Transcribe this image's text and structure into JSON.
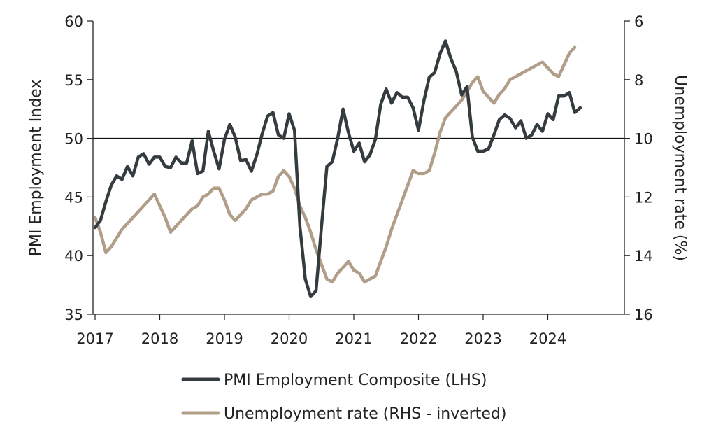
{
  "chart_data": {
    "type": "line",
    "title": "",
    "x_ticks": [
      "2017",
      "2018",
      "2019",
      "2020",
      "2021",
      "2022",
      "2023",
      "2024"
    ],
    "left_axis": {
      "label": "PMI Employment Index",
      "ylim": [
        35,
        60
      ],
      "ticks": [
        "60",
        "55",
        "50",
        "45",
        "40",
        "35"
      ],
      "reference_line": 50
    },
    "right_axis": {
      "label": "Unemployment rate (%)",
      "ylim": [
        6,
        16
      ],
      "inverted": true,
      "ticks": [
        "6",
        "8",
        "10",
        "12",
        "14",
        "16"
      ]
    },
    "legend_position": "bottom",
    "grid": false,
    "series": [
      {
        "name": "PMI Employment Composite (LHS)",
        "axis": "left",
        "color": "#343c40",
        "points": [
          [
            "2017-01",
            42.4
          ],
          [
            "2017-02",
            43.0
          ],
          [
            "2017-03",
            44.6
          ],
          [
            "2017-04",
            46.0
          ],
          [
            "2017-05",
            46.8
          ],
          [
            "2017-06",
            46.5
          ],
          [
            "2017-07",
            47.6
          ],
          [
            "2017-08",
            46.8
          ],
          [
            "2017-09",
            48.4
          ],
          [
            "2017-10",
            48.7
          ],
          [
            "2017-11",
            47.8
          ],
          [
            "2017-12",
            48.4
          ],
          [
            "2018-01",
            48.4
          ],
          [
            "2018-02",
            47.6
          ],
          [
            "2018-03",
            47.5
          ],
          [
            "2018-04",
            48.4
          ],
          [
            "2018-05",
            47.9
          ],
          [
            "2018-06",
            47.9
          ],
          [
            "2018-07",
            49.8
          ],
          [
            "2018-08",
            47.0
          ],
          [
            "2018-09",
            47.2
          ],
          [
            "2018-10",
            50.6
          ],
          [
            "2018-11",
            48.9
          ],
          [
            "2018-12",
            47.4
          ],
          [
            "2019-01",
            49.9
          ],
          [
            "2019-02",
            51.2
          ],
          [
            "2019-03",
            50.1
          ],
          [
            "2019-04",
            48.1
          ],
          [
            "2019-05",
            48.2
          ],
          [
            "2019-06",
            47.2
          ],
          [
            "2019-07",
            48.6
          ],
          [
            "2019-08",
            50.4
          ],
          [
            "2019-09",
            51.9
          ],
          [
            "2019-10",
            52.2
          ],
          [
            "2019-11",
            50.3
          ],
          [
            "2019-12",
            50.0
          ],
          [
            "2020-01",
            52.1
          ],
          [
            "2020-02",
            50.7
          ],
          [
            "2020-03",
            42.5
          ],
          [
            "2020-04",
            38.0
          ],
          [
            "2020-05",
            36.5
          ],
          [
            "2020-06",
            37.0
          ],
          [
            "2020-07",
            42.5
          ],
          [
            "2020-08",
            47.6
          ],
          [
            "2020-09",
            48.0
          ],
          [
            "2020-10",
            50.0
          ],
          [
            "2020-11",
            52.5
          ],
          [
            "2020-12",
            50.5
          ],
          [
            "2021-01",
            48.9
          ],
          [
            "2021-02",
            49.6
          ],
          [
            "2021-03",
            48.0
          ],
          [
            "2021-04",
            48.6
          ],
          [
            "2021-05",
            49.9
          ],
          [
            "2021-06",
            52.9
          ],
          [
            "2021-07",
            54.2
          ],
          [
            "2021-08",
            53.0
          ],
          [
            "2021-09",
            53.9
          ],
          [
            "2021-10",
            53.5
          ],
          [
            "2021-11",
            53.5
          ],
          [
            "2021-12",
            52.6
          ],
          [
            "2022-01",
            50.7
          ],
          [
            "2022-02",
            53.2
          ],
          [
            "2022-03",
            55.2
          ],
          [
            "2022-04",
            55.6
          ],
          [
            "2022-05",
            57.2
          ],
          [
            "2022-06",
            58.3
          ],
          [
            "2022-07",
            56.8
          ],
          [
            "2022-08",
            55.7
          ],
          [
            "2022-09",
            53.7
          ],
          [
            "2022-10",
            54.4
          ],
          [
            "2022-11",
            50.1
          ],
          [
            "2022-12",
            48.9
          ],
          [
            "2023-01",
            48.9
          ],
          [
            "2023-02",
            49.1
          ],
          [
            "2023-03",
            50.3
          ],
          [
            "2023-04",
            51.6
          ],
          [
            "2023-05",
            52.0
          ],
          [
            "2023-06",
            51.7
          ],
          [
            "2023-07",
            50.9
          ],
          [
            "2023-08",
            51.5
          ],
          [
            "2023-09",
            50.0
          ],
          [
            "2023-10",
            50.3
          ],
          [
            "2023-11",
            51.2
          ],
          [
            "2023-12",
            50.6
          ],
          [
            "2024-01",
            52.1
          ],
          [
            "2024-02",
            51.6
          ],
          [
            "2024-03",
            53.6
          ],
          [
            "2024-04",
            53.6
          ],
          [
            "2024-05",
            53.9
          ],
          [
            "2024-06",
            52.2
          ],
          [
            "2024-07",
            52.6
          ]
        ]
      },
      {
        "name": "Unemployment rate (RHS - inverted)",
        "axis": "right",
        "color": "#b19e88",
        "points": [
          [
            "2017-01",
            12.7
          ],
          [
            "2017-02",
            13.2
          ],
          [
            "2017-03",
            13.9
          ],
          [
            "2017-04",
            13.7
          ],
          [
            "2017-05",
            13.4
          ],
          [
            "2017-06",
            13.1
          ],
          [
            "2017-07",
            12.9
          ],
          [
            "2017-08",
            12.7
          ],
          [
            "2017-09",
            12.5
          ],
          [
            "2017-10",
            12.3
          ],
          [
            "2017-11",
            12.1
          ],
          [
            "2017-12",
            11.9
          ],
          [
            "2018-01",
            12.3
          ],
          [
            "2018-02",
            12.7
          ],
          [
            "2018-03",
            13.2
          ],
          [
            "2018-04",
            13.0
          ],
          [
            "2018-05",
            12.8
          ],
          [
            "2018-06",
            12.6
          ],
          [
            "2018-07",
            12.4
          ],
          [
            "2018-08",
            12.3
          ],
          [
            "2018-09",
            12.0
          ],
          [
            "2018-10",
            11.9
          ],
          [
            "2018-11",
            11.7
          ],
          [
            "2018-12",
            11.7
          ],
          [
            "2019-01",
            12.1
          ],
          [
            "2019-02",
            12.6
          ],
          [
            "2019-03",
            12.8
          ],
          [
            "2019-04",
            12.6
          ],
          [
            "2019-05",
            12.4
          ],
          [
            "2019-06",
            12.1
          ],
          [
            "2019-07",
            12.0
          ],
          [
            "2019-08",
            11.9
          ],
          [
            "2019-09",
            11.9
          ],
          [
            "2019-10",
            11.8
          ],
          [
            "2019-11",
            11.3
          ],
          [
            "2019-12",
            11.1
          ],
          [
            "2020-01",
            11.3
          ],
          [
            "2020-02",
            11.7
          ],
          [
            "2020-03",
            12.3
          ],
          [
            "2020-04",
            12.7
          ],
          [
            "2020-05",
            13.2
          ],
          [
            "2020-06",
            13.8
          ],
          [
            "2020-07",
            14.3
          ],
          [
            "2020-08",
            14.8
          ],
          [
            "2020-09",
            14.9
          ],
          [
            "2020-10",
            14.6
          ],
          [
            "2020-11",
            14.4
          ],
          [
            "2020-12",
            14.2
          ],
          [
            "2021-01",
            14.5
          ],
          [
            "2021-02",
            14.6
          ],
          [
            "2021-03",
            14.9
          ],
          [
            "2021-04",
            14.8
          ],
          [
            "2021-05",
            14.7
          ],
          [
            "2021-06",
            14.2
          ],
          [
            "2021-07",
            13.7
          ],
          [
            "2021-08",
            13.1
          ],
          [
            "2021-09",
            12.6
          ],
          [
            "2021-10",
            12.1
          ],
          [
            "2021-11",
            11.6
          ],
          [
            "2021-12",
            11.1
          ],
          [
            "2022-01",
            11.2
          ],
          [
            "2022-02",
            11.2
          ],
          [
            "2022-03",
            11.1
          ],
          [
            "2022-04",
            10.5
          ],
          [
            "2022-05",
            9.8
          ],
          [
            "2022-06",
            9.3
          ],
          [
            "2022-07",
            9.1
          ],
          [
            "2022-08",
            8.9
          ],
          [
            "2022-09",
            8.7
          ],
          [
            "2022-10",
            8.4
          ],
          [
            "2022-11",
            8.1
          ],
          [
            "2022-12",
            7.9
          ],
          [
            "2023-01",
            8.4
          ],
          [
            "2023-02",
            8.6
          ],
          [
            "2023-03",
            8.8
          ],
          [
            "2023-04",
            8.5
          ],
          [
            "2023-05",
            8.3
          ],
          [
            "2023-06",
            8.0
          ],
          [
            "2023-07",
            7.9
          ],
          [
            "2023-08",
            7.8
          ],
          [
            "2023-09",
            7.7
          ],
          [
            "2023-10",
            7.6
          ],
          [
            "2023-11",
            7.5
          ],
          [
            "2023-12",
            7.4
          ],
          [
            "2024-01",
            7.6
          ],
          [
            "2024-02",
            7.8
          ],
          [
            "2024-03",
            7.9
          ],
          [
            "2024-04",
            7.5
          ],
          [
            "2024-05",
            7.1
          ],
          [
            "2024-06",
            6.9
          ]
        ]
      }
    ]
  }
}
